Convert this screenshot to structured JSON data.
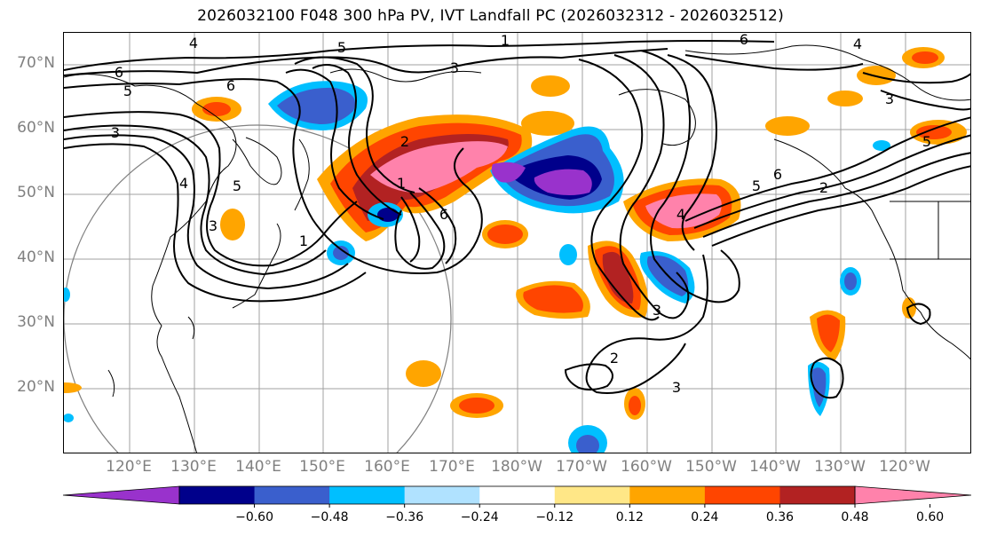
{
  "title": "2026032100 F048 300 hPa PV, IVT Landfall PC (2026032312 - 2026032512)",
  "lat_labels": [
    "70°N",
    "60°N",
    "50°N",
    "40°N",
    "30°N",
    "20°N"
  ],
  "lon_labels": [
    "120°E",
    "130°E",
    "140°E",
    "150°E",
    "160°E",
    "170°E",
    "180°W",
    "170°W",
    "160°W",
    "150°W",
    "140°W",
    "130°W",
    "120°W"
  ],
  "colorbar": {
    "ticks": [
      "−0.60",
      "−0.48",
      "−0.36",
      "−0.24",
      "−0.12",
      "0.12",
      "0.24",
      "0.36",
      "0.48",
      "0.60"
    ],
    "colors": [
      "#9932cc",
      "#00008b",
      "#3a5fcd",
      "#00bfff",
      "#b0e2ff",
      "#ffffff",
      "#ffe787",
      "#ffa500",
      "#ff4500",
      "#b22222",
      "#ff82ab"
    ]
  },
  "contour_labels": [
    "4",
    "5",
    "1",
    "6",
    "6",
    "3",
    "5",
    "3",
    "6",
    "4",
    "5",
    "3",
    "2",
    "1",
    "6",
    "4",
    "3",
    "6",
    "5",
    "2",
    "4",
    "5",
    "3",
    "1",
    "2",
    "3"
  ]
}
